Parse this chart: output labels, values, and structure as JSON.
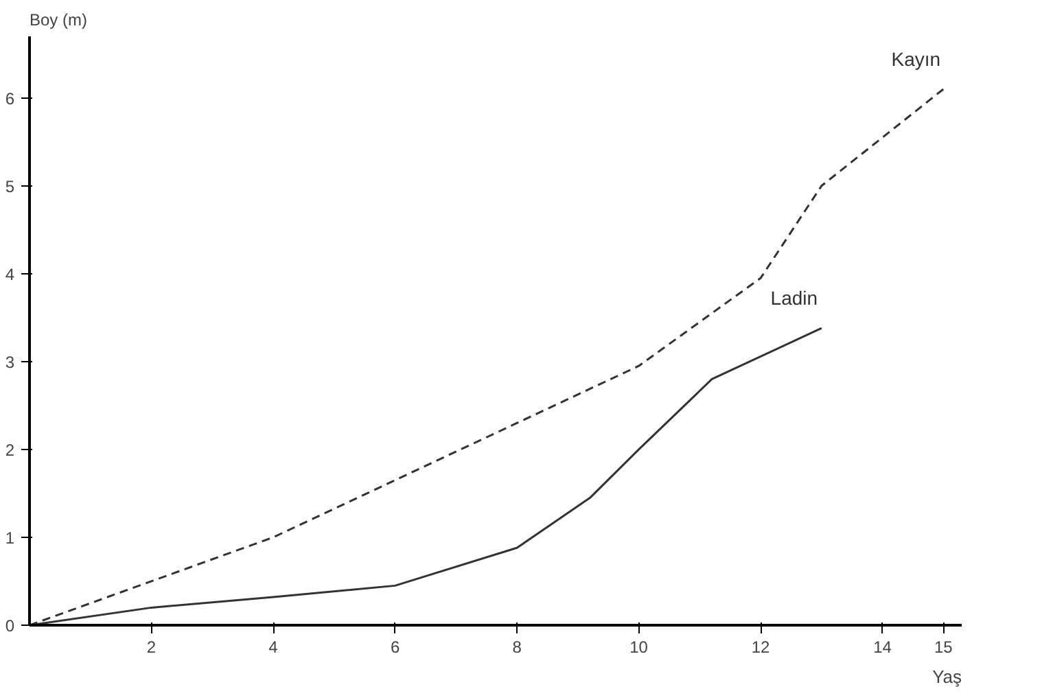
{
  "chart_data": {
    "type": "line",
    "xlabel": "Yaş",
    "ylabel": "Boy (m)",
    "xlim": [
      0,
      15.3
    ],
    "ylim": [
      0,
      6.7
    ],
    "xticks": [
      2,
      4,
      6,
      8,
      10,
      12,
      14,
      15
    ],
    "yticks": [
      0,
      1,
      2,
      3,
      4,
      5,
      6
    ],
    "grid": false,
    "marker": "none",
    "series": [
      {
        "name": "Kayın",
        "color": "#333333",
        "line_style": "dashed",
        "x": [
          0,
          4,
          8,
          10,
          12,
          13,
          15
        ],
        "values": [
          0,
          1.0,
          2.3,
          2.95,
          3.95,
          5.0,
          6.1
        ]
      },
      {
        "name": "Ladin",
        "color": "#333333",
        "line_style": "solid",
        "x": [
          0,
          2,
          4,
          6,
          8,
          9.2,
          10,
          11.2,
          13
        ],
        "values": [
          0,
          0.2,
          0.32,
          0.45,
          0.88,
          1.45,
          2.0,
          2.8,
          3.38
        ]
      }
    ]
  }
}
